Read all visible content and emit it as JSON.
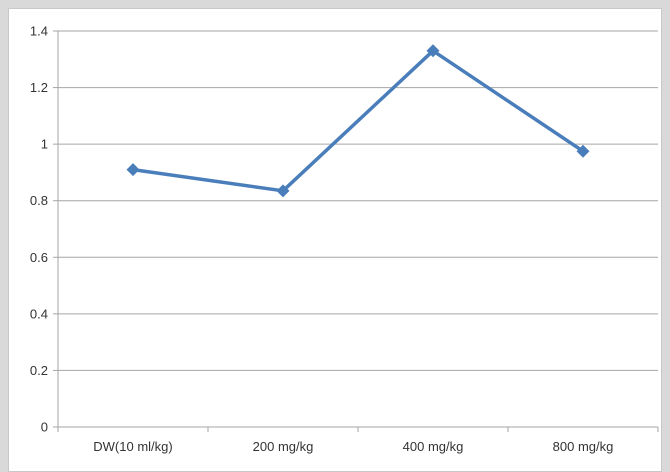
{
  "chart_data": {
    "type": "line",
    "categories": [
      "DW(10 ml/kg)",
      "200 mg/kg",
      "400 mg/kg",
      "800 mg/kg"
    ],
    "series": [
      {
        "values": [
          0.91,
          0.835,
          1.33,
          0.975
        ]
      }
    ],
    "ylim": [
      0,
      1.4
    ],
    "yticks": [
      0,
      0.2,
      0.4,
      0.6,
      0.8,
      1,
      1.2,
      1.4
    ],
    "ytick_labels": [
      "0",
      "0.2",
      "0.4",
      "0.6",
      "0.8",
      "1",
      "1.2",
      "1.4"
    ],
    "grid": true,
    "legend": "none",
    "colors": {
      "line": "#4a7ebb",
      "marker": "#4a7ebb",
      "grid": "#a6a6a6"
    }
  }
}
